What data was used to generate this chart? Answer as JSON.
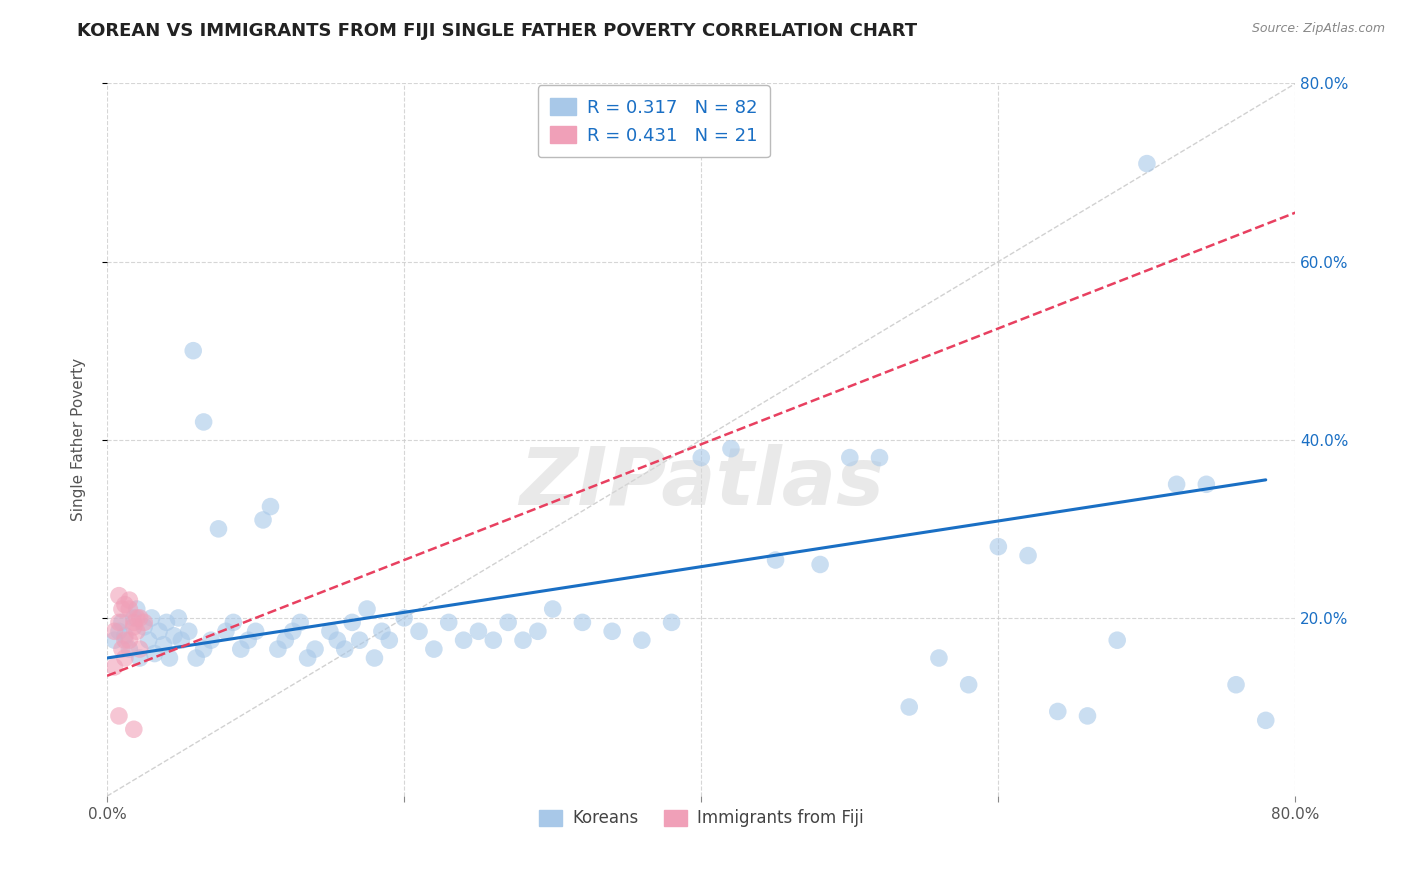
{
  "title": "KOREAN VS IMMIGRANTS FROM FIJI SINGLE FATHER POVERTY CORRELATION CHART",
  "source": "Source: ZipAtlas.com",
  "ylabel": "Single Father Poverty",
  "xlim": [
    0.0,
    0.8
  ],
  "ylim": [
    0.0,
    0.8
  ],
  "xtick_vals": [
    0.0,
    0.2,
    0.4,
    0.6,
    0.8
  ],
  "xtick_labels": [
    "0.0%",
    "",
    "",
    "",
    "80.0%"
  ],
  "ytick_vals": [
    0.2,
    0.4,
    0.6,
    0.8
  ],
  "ytick_labels_right": [
    "20.0%",
    "40.0%",
    "60.0%",
    "80.0%"
  ],
  "blue_color": "#A8C8E8",
  "pink_color": "#F0A0B8",
  "blue_line_color": "#1A6FC4",
  "pink_line_color": "#E84060",
  "legend_blue_text": "R = 0.317   N = 82",
  "legend_pink_text": "R = 0.431   N = 21",
  "legend_label_blue": "Koreans",
  "legend_label_pink": "Immigrants from Fiji",
  "watermark": "ZIPatlas",
  "title_fontsize": 13,
  "axis_label_fontsize": 11,
  "tick_fontsize": 11,
  "scatter_alpha": 0.6,
  "scatter_size": 160,
  "background_color": "#FFFFFF",
  "grid_color": "#CCCCCC",
  "blue_line_x0": 0.0,
  "blue_line_y0": 0.155,
  "blue_line_x1": 0.78,
  "blue_line_y1": 0.355,
  "pink_line_x0": 0.0,
  "pink_line_y0": 0.135,
  "pink_line_x1": 0.2,
  "pink_line_y1": 0.265,
  "diag_color": "#CCCCCC",
  "koreans_x": [
    0.005,
    0.008,
    0.01,
    0.012,
    0.015,
    0.018,
    0.02,
    0.022,
    0.025,
    0.028,
    0.03,
    0.032,
    0.035,
    0.038,
    0.04,
    0.042,
    0.045,
    0.048,
    0.05,
    0.055,
    0.058,
    0.06,
    0.065,
    0.07,
    0.075,
    0.08,
    0.085,
    0.09,
    0.095,
    0.1,
    0.105,
    0.11,
    0.115,
    0.12,
    0.125,
    0.13,
    0.135,
    0.14,
    0.15,
    0.155,
    0.16,
    0.165,
    0.17,
    0.175,
    0.18,
    0.185,
    0.19,
    0.2,
    0.21,
    0.22,
    0.23,
    0.24,
    0.25,
    0.26,
    0.27,
    0.28,
    0.29,
    0.3,
    0.32,
    0.34,
    0.36,
    0.38,
    0.4,
    0.42,
    0.45,
    0.48,
    0.5,
    0.52,
    0.54,
    0.56,
    0.58,
    0.6,
    0.62,
    0.64,
    0.66,
    0.68,
    0.7,
    0.72,
    0.74,
    0.76,
    0.78,
    0.065
  ],
  "koreans_y": [
    0.175,
    0.185,
    0.195,
    0.18,
    0.165,
    0.2,
    0.21,
    0.155,
    0.19,
    0.175,
    0.2,
    0.16,
    0.185,
    0.17,
    0.195,
    0.155,
    0.18,
    0.2,
    0.175,
    0.185,
    0.5,
    0.155,
    0.165,
    0.175,
    0.3,
    0.185,
    0.195,
    0.165,
    0.175,
    0.185,
    0.31,
    0.325,
    0.165,
    0.175,
    0.185,
    0.195,
    0.155,
    0.165,
    0.185,
    0.175,
    0.165,
    0.195,
    0.175,
    0.21,
    0.155,
    0.185,
    0.175,
    0.2,
    0.185,
    0.165,
    0.195,
    0.175,
    0.185,
    0.175,
    0.195,
    0.175,
    0.185,
    0.21,
    0.195,
    0.185,
    0.175,
    0.195,
    0.38,
    0.39,
    0.265,
    0.26,
    0.38,
    0.38,
    0.1,
    0.155,
    0.125,
    0.28,
    0.27,
    0.095,
    0.09,
    0.175,
    0.71,
    0.35,
    0.35,
    0.125,
    0.085,
    0.42
  ],
  "fiji_x": [
    0.005,
    0.008,
    0.01,
    0.012,
    0.015,
    0.018,
    0.02,
    0.022,
    0.005,
    0.008,
    0.01,
    0.012,
    0.015,
    0.018,
    0.02,
    0.022,
    0.025,
    0.008,
    0.015,
    0.012,
    0.018
  ],
  "fiji_y": [
    0.185,
    0.195,
    0.21,
    0.175,
    0.22,
    0.195,
    0.185,
    0.2,
    0.145,
    0.225,
    0.165,
    0.215,
    0.175,
    0.19,
    0.2,
    0.165,
    0.195,
    0.09,
    0.21,
    0.155,
    0.075
  ]
}
